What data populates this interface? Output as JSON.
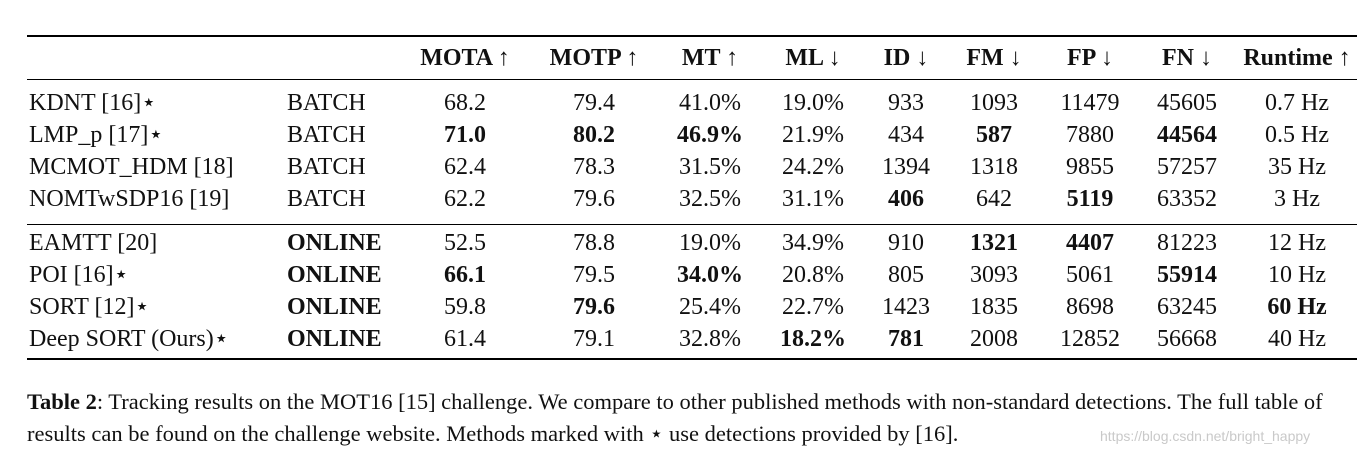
{
  "table": {
    "headers": [
      "",
      "",
      "MOTA ↑",
      "MOTP ↑",
      "MT ↑",
      "ML ↓",
      "ID ↓",
      "FM ↓",
      "FP ↓",
      "FN ↓",
      "Runtime ↑"
    ],
    "groups": [
      {
        "rows": [
          {
            "method": "KDNT [16]⋆",
            "type": "BATCH",
            "mota": "68.2",
            "motp": "79.4",
            "mt": "41.0%",
            "ml": "19.0%",
            "id": "933",
            "fm": "1093",
            "fp": "11479",
            "fn": "45605",
            "runtime": "0.7 Hz",
            "bold": []
          },
          {
            "method": "LMP_p [17]⋆",
            "type": "BATCH",
            "mota": "71.0",
            "motp": "80.2",
            "mt": "46.9%",
            "ml": "21.9%",
            "id": "434",
            "fm": "587",
            "fp": "7880",
            "fn": "44564",
            "runtime": "0.5 Hz",
            "bold": [
              "mota",
              "motp",
              "mt",
              "fm",
              "fn"
            ]
          },
          {
            "method": "MCMOT_HDM [18]",
            "type": "BATCH",
            "mota": "62.4",
            "motp": "78.3",
            "mt": "31.5%",
            "ml": "24.2%",
            "id": "1394",
            "fm": "1318",
            "fp": "9855",
            "fn": "57257",
            "runtime": "35 Hz",
            "bold": []
          },
          {
            "method": "NOMTwSDP16 [19]",
            "type": "BATCH",
            "mota": "62.2",
            "motp": "79.6",
            "mt": "32.5%",
            "ml": "31.1%",
            "id": "406",
            "fm": "642",
            "fp": "5119",
            "fn": "63352",
            "runtime": "3 Hz",
            "bold": [
              "id",
              "fp"
            ]
          }
        ]
      },
      {
        "rows": [
          {
            "method": "EAMTT [20]",
            "type": "ONLINE",
            "mota": "52.5",
            "motp": "78.8",
            "mt": "19.0%",
            "ml": "34.9%",
            "id": "910",
            "fm": "1321",
            "fp": "4407",
            "fn": "81223",
            "runtime": "12 Hz",
            "bold": [
              "type",
              "fm",
              "fp"
            ]
          },
          {
            "method": "POI [16]⋆",
            "type": "ONLINE",
            "mota": "66.1",
            "motp": "79.5",
            "mt": "34.0%",
            "ml": "20.8%",
            "id": "805",
            "fm": "3093",
            "fp": "5061",
            "fn": "55914",
            "runtime": "10 Hz",
            "bold": [
              "type",
              "mota",
              "mt",
              "fn"
            ]
          },
          {
            "method": "SORT [12]⋆",
            "type": "ONLINE",
            "mota": "59.8",
            "motp": "79.6",
            "mt": "25.4%",
            "ml": "22.7%",
            "id": "1423",
            "fm": "1835",
            "fp": "8698",
            "fn": "63245",
            "runtime": "60 Hz",
            "bold": [
              "type",
              "motp",
              "runtime"
            ]
          },
          {
            "method": "Deep SORT (Ours)⋆",
            "type": "ONLINE",
            "mota": "61.4",
            "motp": "79.1",
            "mt": "32.8%",
            "ml": "18.2%",
            "id": "781",
            "fm": "2008",
            "fp": "12852",
            "fn": "56668",
            "runtime": "40 Hz",
            "bold": [
              "type",
              "ml",
              "id"
            ]
          }
        ]
      }
    ]
  },
  "caption": {
    "label": "Table 2",
    "text": ": Tracking results on the MOT16 [15] challenge. We compare to other published methods with non-standard detections. The full table of results can be found on the challenge website. Methods marked with ⋆ use detections provided by [16]."
  },
  "watermark": "https://blog.csdn.net/bright_happy"
}
